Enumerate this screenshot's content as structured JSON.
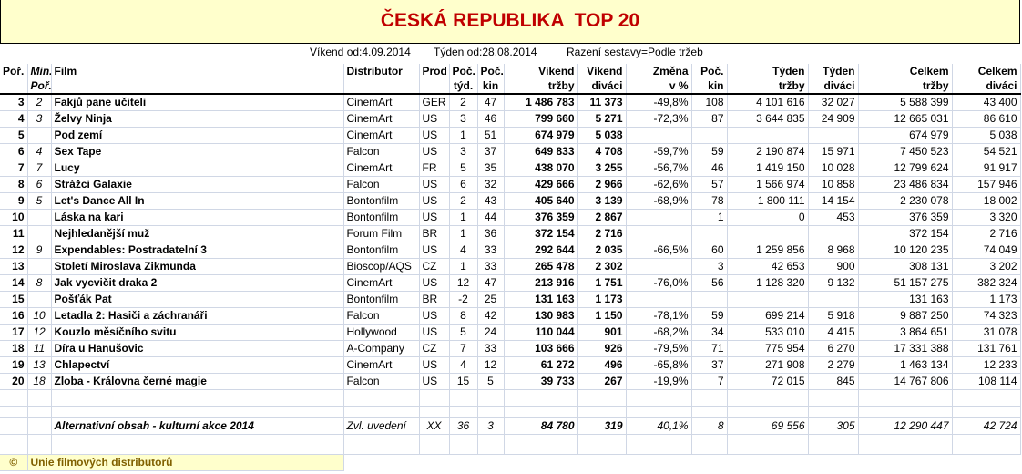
{
  "header": {
    "title": "ČESKÁ REPUBLIKA  TOP 20",
    "weekend": "Víkend od:4.09.2014",
    "week": "Týden od:28.08.2014",
    "sort": "Razení sestavy=Podle tržeb"
  },
  "table": {
    "columns": [
      [
        "Poř."
      ],
      [
        "Min.",
        "Poř."
      ],
      [
        "Film"
      ],
      [
        "Distributor"
      ],
      [
        "Prod"
      ],
      [
        "Poč.",
        "týd."
      ],
      [
        "Poč.",
        "kin"
      ],
      [
        "Víkend",
        "tržby"
      ],
      [
        "Víkend",
        "diváci"
      ],
      [
        "Změna",
        "v %"
      ],
      [
        "Poč.",
        "kin"
      ],
      [
        "Týden",
        "tržby"
      ],
      [
        "Týden",
        "diváci"
      ],
      [
        "Celkem",
        "tržby"
      ],
      [
        "Celkem",
        "diváci"
      ]
    ],
    "rows": [
      [
        "3",
        "2",
        "Fakjů pane učiteli",
        "CinemArt",
        "GER",
        "2",
        "47",
        "1 486 783",
        "11 373",
        "-49,8%",
        "108",
        "4 101 616",
        "32 027",
        "5 588 399",
        "43 400"
      ],
      [
        "4",
        "3",
        "Želvy Ninja",
        "CinemArt",
        "US",
        "3",
        "46",
        "799 660",
        "5 271",
        "-72,3%",
        "87",
        "3 644 835",
        "24 909",
        "12 665 031",
        "86 610"
      ],
      [
        "5",
        null,
        "Pod zemí",
        "CinemArt",
        "US",
        "1",
        "51",
        "674 979",
        "5 038",
        null,
        null,
        null,
        null,
        "674 979",
        "5 038"
      ],
      [
        "6",
        "4",
        "Sex Tape",
        "Falcon",
        "US",
        "3",
        "37",
        "649 833",
        "4 708",
        "-59,7%",
        "59",
        "2 190 874",
        "15 971",
        "7 450 523",
        "54 521"
      ],
      [
        "7",
        "7",
        "Lucy",
        "CinemArt",
        "FR",
        "5",
        "35",
        "438 070",
        "3 255",
        "-56,7%",
        "46",
        "1 419 150",
        "10 028",
        "12 799 624",
        "91 917"
      ],
      [
        "8",
        "6",
        "Strážci Galaxie",
        "Falcon",
        "US",
        "6",
        "32",
        "429 666",
        "2 966",
        "-62,6%",
        "57",
        "1 566 974",
        "10 858",
        "23 486 834",
        "157 946"
      ],
      [
        "9",
        "5",
        "Let's Dance All In",
        "Bontonfilm",
        "US",
        "2",
        "43",
        "405 640",
        "3 139",
        "-68,9%",
        "78",
        "1 800 111",
        "14 154",
        "2 230 078",
        "18 002"
      ],
      [
        "10",
        null,
        "Láska na kari",
        "Bontonfilm",
        "US",
        "1",
        "44",
        "376 359",
        "2 867",
        null,
        "1",
        "0",
        "453",
        "376 359",
        "3 320"
      ],
      [
        "11",
        null,
        "Nejhledanější muž",
        "Forum Film",
        "BR",
        "1",
        "36",
        "372 154",
        "2 716",
        null,
        null,
        null,
        null,
        "372 154",
        "2 716"
      ],
      [
        "12",
        "9",
        "Expendables: Postradatelní 3",
        "Bontonfilm",
        "US",
        "4",
        "33",
        "292 644",
        "2 035",
        "-66,5%",
        "60",
        "1 259 856",
        "8 968",
        "10 120 235",
        "74 049"
      ],
      [
        "13",
        null,
        "Století Miroslava Zikmunda",
        "Bioscop/AQS",
        "CZ",
        "1",
        "33",
        "265 478",
        "2 302",
        null,
        "3",
        "42 653",
        "900",
        "308 131",
        "3 202"
      ],
      [
        "14",
        "8",
        "Jak vycvičit draka 2",
        "CinemArt",
        "US",
        "12",
        "47",
        "213 916",
        "1 751",
        "-76,0%",
        "56",
        "1 128 320",
        "9 132",
        "51 157 275",
        "382 324"
      ],
      [
        "15",
        null,
        "Pošťák Pat",
        "Bontonfilm",
        "BR",
        "-2",
        "25",
        "131 163",
        "1 173",
        null,
        null,
        null,
        null,
        "131 163",
        "1 173"
      ],
      [
        "16",
        "10",
        "Letadla 2: Hasiči a záchranáři",
        "Falcon",
        "US",
        "8",
        "42",
        "130 983",
        "1 150",
        "-78,1%",
        "59",
        "699 214",
        "5 918",
        "9 887 250",
        "74 323"
      ],
      [
        "17",
        "12",
        "Kouzlo měsíčního svitu",
        "Hollywood",
        "US",
        "5",
        "24",
        "110 044",
        "901",
        "-68,2%",
        "34",
        "533 010",
        "4 415",
        "3 864 651",
        "31 078"
      ],
      [
        "18",
        "11",
        "Díra u Hanušovic",
        "A-Company",
        "CZ",
        "7",
        "33",
        "103 666",
        "926",
        "-79,5%",
        "71",
        "775 954",
        "6 270",
        "17 331 388",
        "131 761"
      ],
      [
        "19",
        "13",
        "Chlapectví",
        "CinemArt",
        "US",
        "4",
        "12",
        "61 272",
        "496",
        "-65,8%",
        "37",
        "271 908",
        "2 279",
        "1 463 134",
        "12 233"
      ],
      [
        "20",
        "18",
        "Zloba - Královna černé magie",
        "Falcon",
        "US",
        "15",
        "5",
        "39 733",
        "267",
        "-19,9%",
        "7",
        "72 015",
        "845",
        "14 767 806",
        "108 114"
      ]
    ],
    "alt_row": [
      "Alternativní obsah - kulturní akce 2014",
      "Zvl. uvedení",
      "XX",
      "36",
      "3",
      "84 780",
      "319",
      "40,1%",
      "8",
      "69 556",
      "305",
      "12 290 447",
      "42 724"
    ]
  },
  "footer": {
    "symbol": "©",
    "text": "Unie filmových distributorů"
  }
}
